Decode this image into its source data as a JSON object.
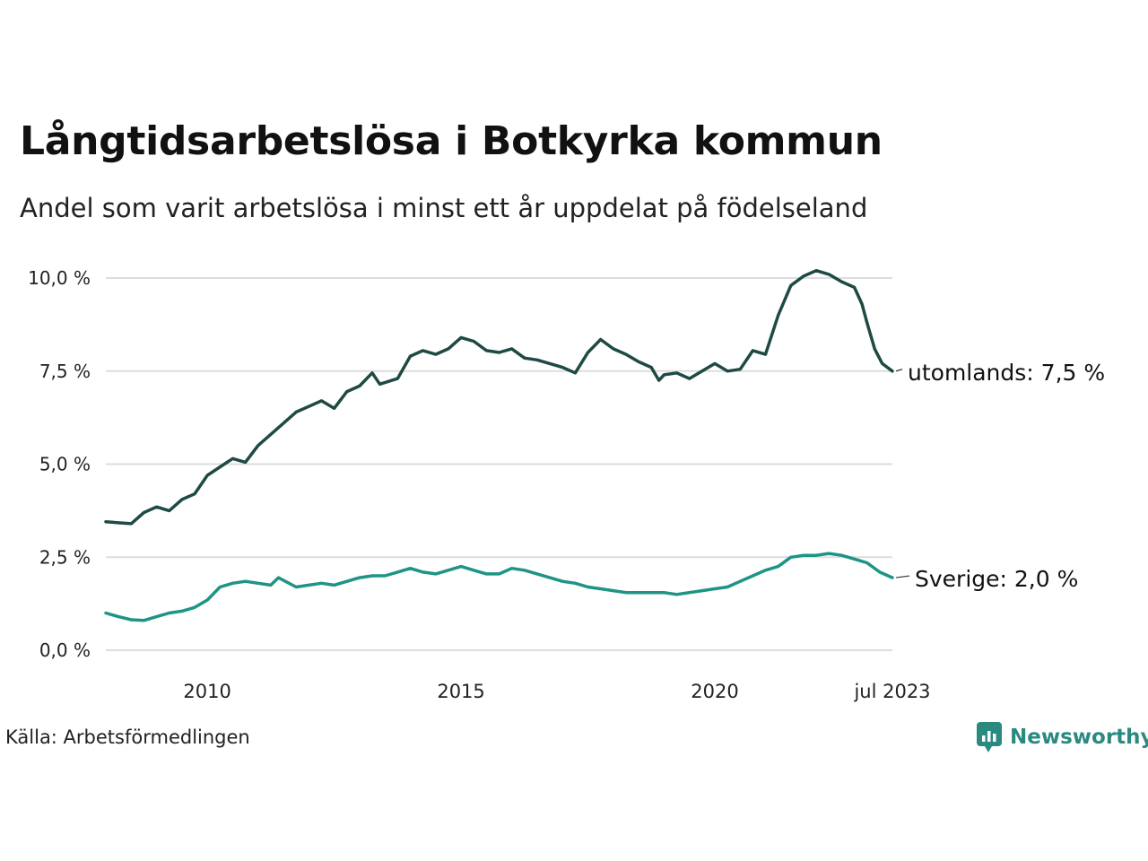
{
  "header": {
    "title": "Långtidsarbetslösa i Botkyrka kommun",
    "subtitle": "Andel som varit arbetslösa i minst ett år uppdelat på födelseland"
  },
  "footer": {
    "source": "Källa: Arbetsförmedlingen",
    "brand": "Newsworthy"
  },
  "chart_data": {
    "type": "line",
    "title": "Långtidsarbetslösa i Botkyrka kommun",
    "subtitle": "Andel som varit arbetslösa i minst ett år uppdelat på födelseland",
    "xlim": [
      2008.0,
      2023.5
    ],
    "ylim": [
      0,
      10.5
    ],
    "yticks": [
      {
        "value": 0,
        "label": "0,0 %"
      },
      {
        "value": 2.5,
        "label": "2,5 %"
      },
      {
        "value": 5,
        "label": "5,0 %"
      },
      {
        "value": 7.5,
        "label": "7,5 %"
      },
      {
        "value": 10,
        "label": "10,0 %"
      }
    ],
    "xticks": [
      {
        "value": 2010,
        "label": "2010"
      },
      {
        "value": 2015,
        "label": "2015"
      },
      {
        "value": 2020,
        "label": "2020"
      },
      {
        "value": 2023.5,
        "label": "jul 2023"
      }
    ],
    "grid": true,
    "colors": {
      "utomlands": "#1f4a44",
      "sverige": "#1e9486",
      "grid": "#dddddd"
    },
    "series": [
      {
        "name": "utomlands",
        "end_label": "utomlands: 7,5 %",
        "color": "#1f4a44",
        "points": [
          [
            2008.0,
            3.45
          ],
          [
            2008.5,
            3.4
          ],
          [
            2008.75,
            3.7
          ],
          [
            2009.0,
            3.85
          ],
          [
            2009.25,
            3.75
          ],
          [
            2009.5,
            4.05
          ],
          [
            2009.75,
            4.2
          ],
          [
            2010.0,
            4.7
          ],
          [
            2010.5,
            5.15
          ],
          [
            2010.75,
            5.05
          ],
          [
            2011.0,
            5.5
          ],
          [
            2011.5,
            6.1
          ],
          [
            2011.75,
            6.4
          ],
          [
            2012.0,
            6.55
          ],
          [
            2012.25,
            6.7
          ],
          [
            2012.5,
            6.5
          ],
          [
            2012.75,
            6.95
          ],
          [
            2013.0,
            7.1
          ],
          [
            2013.25,
            7.45
          ],
          [
            2013.4,
            7.15
          ],
          [
            2013.75,
            7.3
          ],
          [
            2014.0,
            7.9
          ],
          [
            2014.25,
            8.05
          ],
          [
            2014.5,
            7.95
          ],
          [
            2014.75,
            8.1
          ],
          [
            2015.0,
            8.4
          ],
          [
            2015.25,
            8.3
          ],
          [
            2015.5,
            8.05
          ],
          [
            2015.75,
            8.0
          ],
          [
            2016.0,
            8.1
          ],
          [
            2016.25,
            7.85
          ],
          [
            2016.5,
            7.8
          ],
          [
            2016.75,
            7.7
          ],
          [
            2017.0,
            7.6
          ],
          [
            2017.25,
            7.45
          ],
          [
            2017.5,
            8.0
          ],
          [
            2017.75,
            8.35
          ],
          [
            2018.0,
            8.1
          ],
          [
            2018.25,
            7.95
          ],
          [
            2018.5,
            7.75
          ],
          [
            2018.75,
            7.6
          ],
          [
            2018.9,
            7.25
          ],
          [
            2019.0,
            7.4
          ],
          [
            2019.25,
            7.45
          ],
          [
            2019.5,
            7.3
          ],
          [
            2019.75,
            7.5
          ],
          [
            2020.0,
            7.7
          ],
          [
            2020.25,
            7.5
          ],
          [
            2020.5,
            7.55
          ],
          [
            2020.75,
            8.05
          ],
          [
            2021.0,
            7.95
          ],
          [
            2021.25,
            9.0
          ],
          [
            2021.5,
            9.8
          ],
          [
            2021.75,
            10.05
          ],
          [
            2022.0,
            10.2
          ],
          [
            2022.25,
            10.1
          ],
          [
            2022.5,
            9.9
          ],
          [
            2022.75,
            9.75
          ],
          [
            2022.9,
            9.3
          ],
          [
            2023.0,
            8.8
          ],
          [
            2023.15,
            8.1
          ],
          [
            2023.3,
            7.7
          ],
          [
            2023.5,
            7.5
          ]
        ]
      },
      {
        "name": "Sverige",
        "end_label": "Sverige: 2,0 %",
        "color": "#1e9486",
        "points": [
          [
            2008.0,
            1.0
          ],
          [
            2008.25,
            0.9
          ],
          [
            2008.5,
            0.82
          ],
          [
            2008.75,
            0.8
          ],
          [
            2009.0,
            0.9
          ],
          [
            2009.25,
            1.0
          ],
          [
            2009.5,
            1.05
          ],
          [
            2009.75,
            1.15
          ],
          [
            2010.0,
            1.35
          ],
          [
            2010.25,
            1.7
          ],
          [
            2010.5,
            1.8
          ],
          [
            2010.75,
            1.85
          ],
          [
            2011.0,
            1.8
          ],
          [
            2011.25,
            1.75
          ],
          [
            2011.4,
            1.95
          ],
          [
            2011.75,
            1.7
          ],
          [
            2012.0,
            1.75
          ],
          [
            2012.25,
            1.8
          ],
          [
            2012.5,
            1.75
          ],
          [
            2012.75,
            1.85
          ],
          [
            2013.0,
            1.95
          ],
          [
            2013.25,
            2.0
          ],
          [
            2013.5,
            2.0
          ],
          [
            2013.75,
            2.1
          ],
          [
            2014.0,
            2.2
          ],
          [
            2014.25,
            2.1
          ],
          [
            2014.5,
            2.05
          ],
          [
            2014.75,
            2.15
          ],
          [
            2015.0,
            2.25
          ],
          [
            2015.25,
            2.15
          ],
          [
            2015.5,
            2.05
          ],
          [
            2015.75,
            2.05
          ],
          [
            2016.0,
            2.2
          ],
          [
            2016.25,
            2.15
          ],
          [
            2016.5,
            2.05
          ],
          [
            2016.75,
            1.95
          ],
          [
            2017.0,
            1.85
          ],
          [
            2017.25,
            1.8
          ],
          [
            2017.5,
            1.7
          ],
          [
            2017.75,
            1.65
          ],
          [
            2018.0,
            1.6
          ],
          [
            2018.25,
            1.55
          ],
          [
            2018.5,
            1.55
          ],
          [
            2018.75,
            1.55
          ],
          [
            2019.0,
            1.55
          ],
          [
            2019.25,
            1.5
          ],
          [
            2019.5,
            1.55
          ],
          [
            2019.75,
            1.6
          ],
          [
            2020.0,
            1.65
          ],
          [
            2020.25,
            1.7
          ],
          [
            2020.5,
            1.85
          ],
          [
            2020.75,
            2.0
          ],
          [
            2021.0,
            2.15
          ],
          [
            2021.25,
            2.25
          ],
          [
            2021.5,
            2.5
          ],
          [
            2021.75,
            2.55
          ],
          [
            2022.0,
            2.55
          ],
          [
            2022.25,
            2.6
          ],
          [
            2022.5,
            2.55
          ],
          [
            2022.75,
            2.45
          ],
          [
            2023.0,
            2.35
          ],
          [
            2023.25,
            2.1
          ],
          [
            2023.5,
            1.95
          ]
        ]
      }
    ]
  }
}
